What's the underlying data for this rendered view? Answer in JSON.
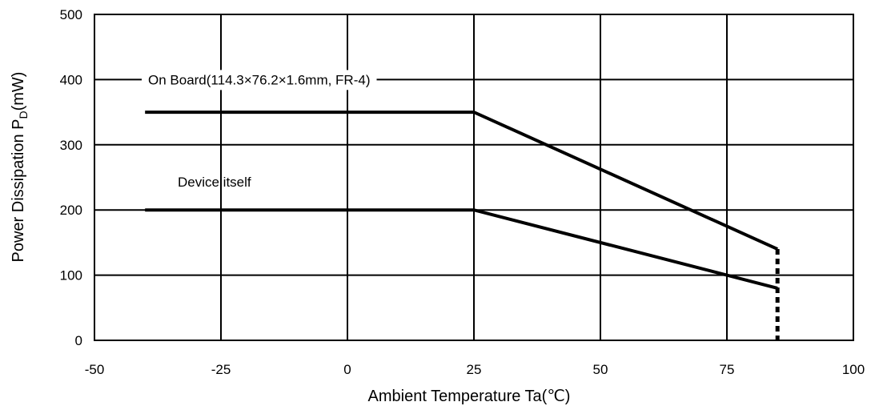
{
  "chart_data": {
    "type": "line",
    "title": "",
    "xlabel": "Ambient Temperature Ta(℃)",
    "ylabel": "Power Dissipation P",
    "ylabel_subscript": "D",
    "ylabel_unit": "(mW)",
    "xlim": [
      -50,
      100
    ],
    "ylim": [
      0,
      500
    ],
    "xticks": [
      -50,
      -25,
      0,
      25,
      50,
      75,
      100
    ],
    "yticks": [
      0,
      100,
      200,
      300,
      400,
      500
    ],
    "grid": true,
    "series": [
      {
        "label": "On Board(114.3×76.2×1.6mm, FR-4)",
        "x": [
          -40,
          25,
          85
        ],
        "y": [
          350,
          350,
          140
        ]
      },
      {
        "label": "Device itself",
        "x": [
          -40,
          25,
          85
        ],
        "y": [
          200,
          200,
          80
        ]
      }
    ],
    "cutoff": {
      "x": 85,
      "y": [
        0,
        140
      ]
    }
  }
}
